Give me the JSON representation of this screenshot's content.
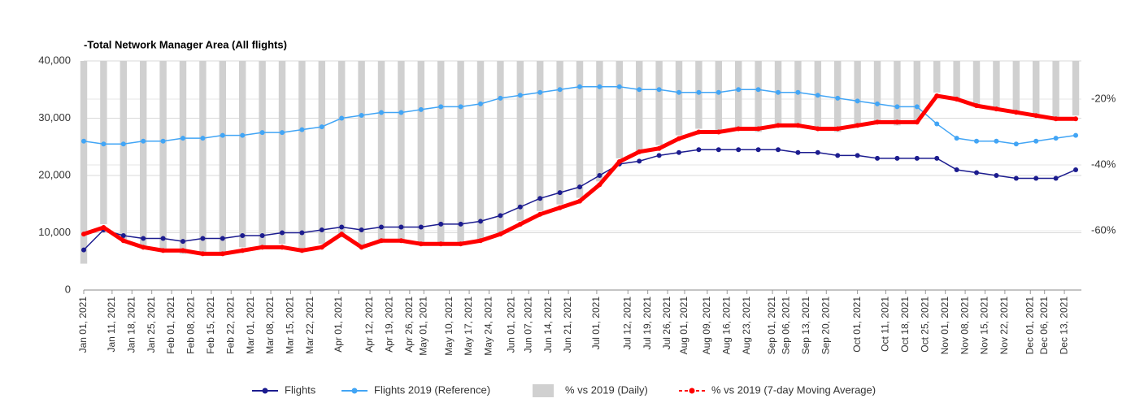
{
  "chart_data": {
    "type": "line",
    "title": "-Total Network Manager Area (All flights)",
    "x": [
      "2021-01-01",
      "2021-01-08",
      "2021-01-15",
      "2021-01-22",
      "2021-01-29",
      "2021-02-05",
      "2021-02-12",
      "2021-02-19",
      "2021-02-26",
      "2021-03-05",
      "2021-03-12",
      "2021-03-19",
      "2021-03-26",
      "2021-04-02",
      "2021-04-09",
      "2021-04-16",
      "2021-04-23",
      "2021-04-30",
      "2021-05-07",
      "2021-05-14",
      "2021-05-21",
      "2021-05-28",
      "2021-06-04",
      "2021-06-11",
      "2021-06-18",
      "2021-06-25",
      "2021-07-02",
      "2021-07-09",
      "2021-07-16",
      "2021-07-23",
      "2021-07-30",
      "2021-08-06",
      "2021-08-13",
      "2021-08-20",
      "2021-08-27",
      "2021-09-03",
      "2021-09-10",
      "2021-09-17",
      "2021-09-24",
      "2021-10-01",
      "2021-10-08",
      "2021-10-15",
      "2021-10-22",
      "2021-10-29",
      "2021-11-05",
      "2021-11-12",
      "2021-11-19",
      "2021-11-26",
      "2021-12-03",
      "2021-12-10",
      "2021-12-17"
    ],
    "xlim": [
      "2021-01-01",
      "2021-12-19"
    ],
    "xticks": [
      {
        "value": "2021-01-01",
        "label": "Jan 01, 2021"
      },
      {
        "value": "2021-01-11",
        "label": "Jan 11, 2021"
      },
      {
        "value": "2021-01-18",
        "label": "Jan 18, 2021"
      },
      {
        "value": "2021-01-25",
        "label": "Jan 25, 2021"
      },
      {
        "value": "2021-02-01",
        "label": "Feb 01, 2021"
      },
      {
        "value": "2021-02-08",
        "label": "Feb 08, 2021"
      },
      {
        "value": "2021-02-15",
        "label": "Feb 15, 2021"
      },
      {
        "value": "2021-02-22",
        "label": "Feb 22, 2021"
      },
      {
        "value": "2021-03-01",
        "label": "Mar 01, 2021"
      },
      {
        "value": "2021-03-08",
        "label": "Mar 08, 2021"
      },
      {
        "value": "2021-03-15",
        "label": "Mar 15, 2021"
      },
      {
        "value": "2021-03-22",
        "label": "Mar 22, 2021"
      },
      {
        "value": "2021-04-01",
        "label": "Apr 01, 2021"
      },
      {
        "value": "2021-04-12",
        "label": "Apr 12, 2021"
      },
      {
        "value": "2021-04-19",
        "label": "Apr 19, 2021"
      },
      {
        "value": "2021-04-26",
        "label": "Apr 26, 2021"
      },
      {
        "value": "2021-05-01",
        "label": "May 01, 2021"
      },
      {
        "value": "2021-05-10",
        "label": "May 10, 2021"
      },
      {
        "value": "2021-05-17",
        "label": "May 17, 2021"
      },
      {
        "value": "2021-05-24",
        "label": "May 24, 2021"
      },
      {
        "value": "2021-06-01",
        "label": "Jun 01, 2021"
      },
      {
        "value": "2021-06-07",
        "label": "Jun 07, 2021"
      },
      {
        "value": "2021-06-14",
        "label": "Jun 14, 2021"
      },
      {
        "value": "2021-06-21",
        "label": "Jun 21, 2021"
      },
      {
        "value": "2021-07-01",
        "label": "Jul 01, 2021"
      },
      {
        "value": "2021-07-12",
        "label": "Jul 12, 2021"
      },
      {
        "value": "2021-07-19",
        "label": "Jul 19, 2021"
      },
      {
        "value": "2021-07-26",
        "label": "Jul 26, 2021"
      },
      {
        "value": "2021-08-01",
        "label": "Aug 01, 2021"
      },
      {
        "value": "2021-08-09",
        "label": "Aug 09, 2021"
      },
      {
        "value": "2021-08-16",
        "label": "Aug 16, 2021"
      },
      {
        "value": "2021-08-23",
        "label": "Aug 23, 2021"
      },
      {
        "value": "2021-09-01",
        "label": "Sep 01, 2021"
      },
      {
        "value": "2021-09-06",
        "label": "Sep 06, 2021"
      },
      {
        "value": "2021-09-13",
        "label": "Sep 13, 2021"
      },
      {
        "value": "2021-09-20",
        "label": "Sep 20, 2021"
      },
      {
        "value": "2021-10-01",
        "label": "Oct 01, 2021"
      },
      {
        "value": "2021-10-11",
        "label": "Oct 11, 2021"
      },
      {
        "value": "2021-10-18",
        "label": "Oct 18, 2021"
      },
      {
        "value": "2021-10-25",
        "label": "Oct 25, 2021"
      },
      {
        "value": "2021-11-01",
        "label": "Nov 01, 2021"
      },
      {
        "value": "2021-11-08",
        "label": "Nov 08, 2021"
      },
      {
        "value": "2021-11-15",
        "label": "Nov 15, 2021"
      },
      {
        "value": "2021-11-22",
        "label": "Nov 22, 2021"
      },
      {
        "value": "2021-12-01",
        "label": "Dec 01, 2021"
      },
      {
        "value": "2021-12-06",
        "label": "Dec 06, 2021"
      },
      {
        "value": "2021-12-13",
        "label": "Dec 13, 2021"
      }
    ],
    "ylim": [
      0,
      40000
    ],
    "yticks": [
      0,
      {
        "value": 10000,
        "label": "10,000"
      },
      {
        "value": 20000,
        "label": "20,000"
      },
      {
        "value": 30000,
        "label": "30,000"
      },
      {
        "value": 40000,
        "label": "40,000"
      }
    ],
    "y2lim": [
      -78,
      -8.4
    ],
    "y2ticks": [
      {
        "value": -20,
        "label": "-20%"
      },
      {
        "value": -40,
        "label": "-40%"
      },
      {
        "value": -60,
        "label": "-60%"
      }
    ],
    "grid": true,
    "legend": "bottom",
    "series": [
      {
        "name": "Flights",
        "color": "#1c1c8f",
        "type": "line",
        "values": [
          7000,
          10500,
          9500,
          9000,
          9000,
          8500,
          9000,
          9000,
          9500,
          9500,
          10000,
          10000,
          10500,
          11000,
          10500,
          11000,
          11000,
          11000,
          11500,
          11500,
          12000,
          13000,
          14500,
          16000,
          17000,
          18000,
          20000,
          22000,
          22500,
          23500,
          24000,
          24500,
          24500,
          24500,
          24500,
          24500,
          24000,
          24000,
          23500,
          23500,
          23000,
          23000,
          23000,
          23000,
          21000,
          20500,
          20000,
          19500,
          19500,
          19500,
          21000
        ]
      },
      {
        "name": "Flights 2019 (Reference)",
        "color": "#42a5f5",
        "type": "line",
        "values": [
          26000,
          25500,
          25500,
          26000,
          26000,
          26500,
          26500,
          27000,
          27000,
          27500,
          27500,
          28000,
          28500,
          30000,
          30500,
          31000,
          31000,
          31500,
          32000,
          32000,
          32500,
          33500,
          34000,
          34500,
          35000,
          35500,
          35500,
          35500,
          35000,
          35000,
          34500,
          34500,
          34500,
          35000,
          35000,
          34500,
          34500,
          34000,
          33500,
          33000,
          32500,
          32000,
          32000,
          29000,
          26500,
          26000,
          26000,
          25500,
          26000,
          26500,
          27000
        ]
      },
      {
        "name": "% vs 2019 (Daily)",
        "color": "#d0d0d0",
        "type": "bar",
        "axis": "y2",
        "values": [
          -70,
          -58,
          -63,
          -65,
          -66,
          -67,
          -67,
          -67,
          -65,
          -65,
          -64,
          -66,
          -64,
          -62,
          -65,
          -63,
          -63,
          -64,
          -64,
          -64,
          -63,
          -61,
          -57,
          -54,
          -52,
          -50,
          -45,
          -38,
          -36,
          -34,
          -31,
          -29,
          -30,
          -29,
          -30,
          -28,
          -28,
          -29,
          -30,
          -28,
          -27,
          -28,
          -27,
          -18,
          -20,
          -22,
          -23,
          -24,
          -25,
          -26,
          -25
        ]
      },
      {
        "name": "% vs 2019 (7-day Moving Average)",
        "color": "#ff0000",
        "type": "line",
        "axis": "y2",
        "values": [
          -61,
          -59,
          -63,
          -65,
          -66,
          -66,
          -67,
          -67,
          -66,
          -65,
          -65,
          -66,
          -65,
          -61,
          -65,
          -63,
          -63,
          -64,
          -64,
          -64,
          -63,
          -61,
          -58,
          -55,
          -53,
          -51,
          -46,
          -39,
          -36,
          -35,
          -32,
          -30,
          -30,
          -29,
          -29,
          -28,
          -28,
          -29,
          -29,
          -28,
          -27,
          -27,
          -27,
          -19,
          -20,
          -22,
          -23,
          -24,
          -25,
          -26,
          -26
        ]
      }
    ]
  }
}
